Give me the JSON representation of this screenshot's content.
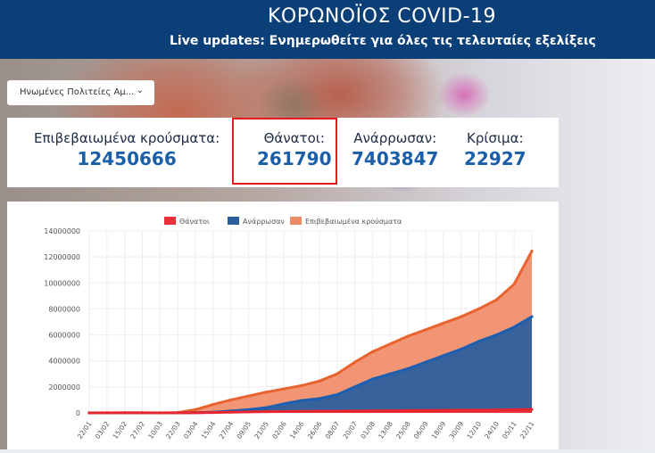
{
  "header": {
    "title": "ΚΟΡΩΝΟΪΟΣ COVID-19",
    "subtitle": "Live updates: Ενημερωθείτε για όλες τις τελευταίες εξελίξεις"
  },
  "region_select": {
    "value": "Ηνωμένες Πολιτείες Αμ...",
    "icon": "chevron-down-icon"
  },
  "stats": [
    {
      "label": "Επιβεβαιωμένα κρούσματα:",
      "value": "12450666"
    },
    {
      "label": "Θάνατοι:",
      "value": "261790"
    },
    {
      "label": "Ανάρρωσαν:",
      "value": "7403847"
    },
    {
      "label": "Κρίσιμα:",
      "value": "22927"
    }
  ],
  "chart_data": {
    "type": "area",
    "legend_position": "top",
    "grid": true,
    "ylim": [
      0,
      14000000
    ],
    "yticks": [
      "0",
      "2000000",
      "4000000",
      "6000000",
      "8000000",
      "10000000",
      "12000000",
      "14000000"
    ],
    "categories": [
      "22/01",
      "03/02",
      "15/02",
      "27/02",
      "10/03",
      "22/03",
      "03/04",
      "15/04",
      "27/04",
      "09/05",
      "21/05",
      "02/06",
      "14/06",
      "26/06",
      "08/07",
      "20/07",
      "01/08",
      "13/08",
      "25/08",
      "06/09",
      "18/09",
      "30/09",
      "12/10",
      "24/10",
      "05/11",
      "22/11"
    ],
    "series": [
      {
        "name": "Θάνατοι",
        "color": "#e8303a",
        "values": [
          0,
          0,
          0,
          0,
          0,
          1000,
          7000,
          30000,
          55000,
          78000,
          95000,
          107000,
          118000,
          127000,
          132000,
          142000,
          155000,
          167000,
          178000,
          190000,
          198000,
          207000,
          216000,
          226000,
          238000,
          261790
        ]
      },
      {
        "name": "Ανάρρωσαν",
        "color": "#2c5f9e",
        "values": [
          0,
          0,
          0,
          0,
          0,
          1000,
          15000,
          50000,
          150000,
          250000,
          400000,
          700000,
          950000,
          1100000,
          1400000,
          2000000,
          2600000,
          3000000,
          3400000,
          3900000,
          4400000,
          4900000,
          5500000,
          6000000,
          6600000,
          7403847
        ]
      },
      {
        "name": "Επιβεβαιωμένα κρούσματα",
        "color": "#ef8a66",
        "values": [
          500,
          10000,
          15000,
          15000,
          1000,
          30000,
          250000,
          650000,
          1000000,
          1300000,
          1600000,
          1850000,
          2100000,
          2450000,
          3000000,
          3900000,
          4700000,
          5300000,
          5900000,
          6400000,
          6900000,
          7400000,
          8000000,
          8700000,
          9900000,
          12450666
        ]
      }
    ]
  }
}
